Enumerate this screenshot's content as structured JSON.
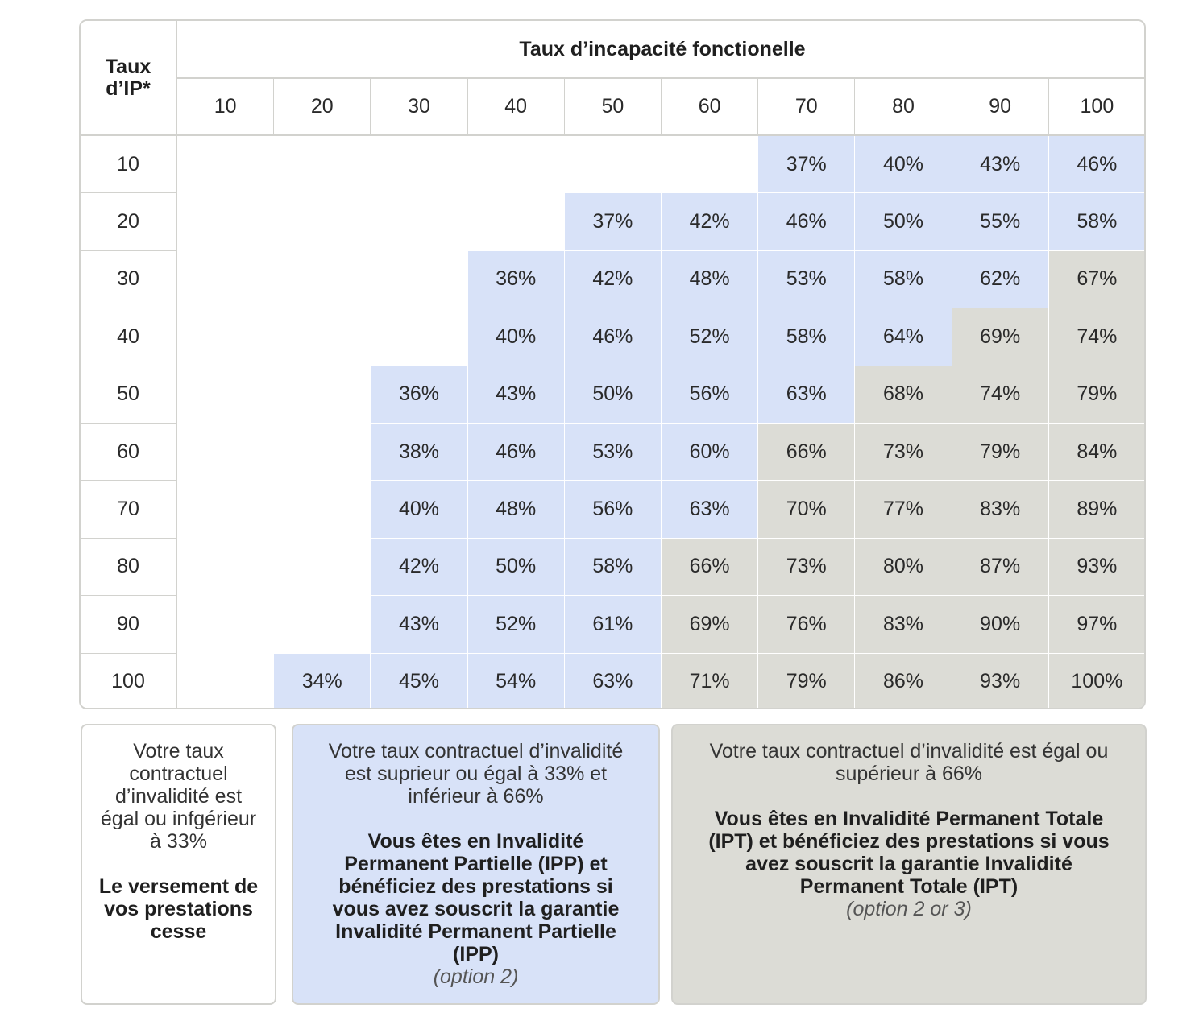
{
  "table": {
    "title": "Taux d’incapacité fonctionelle",
    "row_header_label": "Taux d’IP*",
    "columns": [
      "10",
      "20",
      "30",
      "40",
      "50",
      "60",
      "70",
      "80",
      "90",
      "100"
    ],
    "rows": [
      {
        "label": "10",
        "cells": [
          {
            "v": "",
            "c": "white"
          },
          {
            "v": "",
            "c": "white"
          },
          {
            "v": "",
            "c": "white"
          },
          {
            "v": "",
            "c": "white"
          },
          {
            "v": "",
            "c": "white"
          },
          {
            "v": "",
            "c": "white"
          },
          {
            "v": "37%",
            "c": "blue"
          },
          {
            "v": "40%",
            "c": "blue"
          },
          {
            "v": "43%",
            "c": "blue"
          },
          {
            "v": "46%",
            "c": "blue"
          }
        ]
      },
      {
        "label": "20",
        "cells": [
          {
            "v": "",
            "c": "white"
          },
          {
            "v": "",
            "c": "white"
          },
          {
            "v": "",
            "c": "white"
          },
          {
            "v": "",
            "c": "white"
          },
          {
            "v": "37%",
            "c": "blue"
          },
          {
            "v": "42%",
            "c": "blue"
          },
          {
            "v": "46%",
            "c": "blue"
          },
          {
            "v": "50%",
            "c": "blue"
          },
          {
            "v": "55%",
            "c": "blue"
          },
          {
            "v": "58%",
            "c": "blue"
          }
        ]
      },
      {
        "label": "30",
        "cells": [
          {
            "v": "",
            "c": "white"
          },
          {
            "v": "",
            "c": "white"
          },
          {
            "v": "",
            "c": "white"
          },
          {
            "v": "36%",
            "c": "blue"
          },
          {
            "v": "42%",
            "c": "blue"
          },
          {
            "v": "48%",
            "c": "blue"
          },
          {
            "v": "53%",
            "c": "blue"
          },
          {
            "v": "58%",
            "c": "blue"
          },
          {
            "v": "62%",
            "c": "blue"
          },
          {
            "v": "67%",
            "c": "grey"
          }
        ]
      },
      {
        "label": "40",
        "cells": [
          {
            "v": "",
            "c": "white"
          },
          {
            "v": "",
            "c": "white"
          },
          {
            "v": "",
            "c": "white"
          },
          {
            "v": "40%",
            "c": "blue"
          },
          {
            "v": "46%",
            "c": "blue"
          },
          {
            "v": "52%",
            "c": "blue"
          },
          {
            "v": "58%",
            "c": "blue"
          },
          {
            "v": "64%",
            "c": "blue"
          },
          {
            "v": "69%",
            "c": "grey"
          },
          {
            "v": "74%",
            "c": "grey"
          }
        ]
      },
      {
        "label": "50",
        "cells": [
          {
            "v": "",
            "c": "white"
          },
          {
            "v": "",
            "c": "white"
          },
          {
            "v": "36%",
            "c": "blue"
          },
          {
            "v": "43%",
            "c": "blue"
          },
          {
            "v": "50%",
            "c": "blue"
          },
          {
            "v": "56%",
            "c": "blue"
          },
          {
            "v": "63%",
            "c": "blue"
          },
          {
            "v": "68%",
            "c": "grey"
          },
          {
            "v": "74%",
            "c": "grey"
          },
          {
            "v": "79%",
            "c": "grey"
          }
        ]
      },
      {
        "label": "60",
        "cells": [
          {
            "v": "",
            "c": "white"
          },
          {
            "v": "",
            "c": "white"
          },
          {
            "v": "38%",
            "c": "blue"
          },
          {
            "v": "46%",
            "c": "blue"
          },
          {
            "v": "53%",
            "c": "blue"
          },
          {
            "v": "60%",
            "c": "blue"
          },
          {
            "v": "66%",
            "c": "grey"
          },
          {
            "v": "73%",
            "c": "grey"
          },
          {
            "v": "79%",
            "c": "grey"
          },
          {
            "v": "84%",
            "c": "grey"
          }
        ]
      },
      {
        "label": "70",
        "cells": [
          {
            "v": "",
            "c": "white"
          },
          {
            "v": "",
            "c": "white"
          },
          {
            "v": "40%",
            "c": "blue"
          },
          {
            "v": "48%",
            "c": "blue"
          },
          {
            "v": "56%",
            "c": "blue"
          },
          {
            "v": "63%",
            "c": "blue"
          },
          {
            "v": "70%",
            "c": "grey"
          },
          {
            "v": "77%",
            "c": "grey"
          },
          {
            "v": "83%",
            "c": "grey"
          },
          {
            "v": "89%",
            "c": "grey"
          }
        ]
      },
      {
        "label": "80",
        "cells": [
          {
            "v": "",
            "c": "white"
          },
          {
            "v": "",
            "c": "white"
          },
          {
            "v": "42%",
            "c": "blue"
          },
          {
            "v": "50%",
            "c": "blue"
          },
          {
            "v": "58%",
            "c": "blue"
          },
          {
            "v": "66%",
            "c": "grey"
          },
          {
            "v": "73%",
            "c": "grey"
          },
          {
            "v": "80%",
            "c": "grey"
          },
          {
            "v": "87%",
            "c": "grey"
          },
          {
            "v": "93%",
            "c": "grey"
          }
        ]
      },
      {
        "label": "90",
        "cells": [
          {
            "v": "",
            "c": "white"
          },
          {
            "v": "",
            "c": "white"
          },
          {
            "v": "43%",
            "c": "blue"
          },
          {
            "v": "52%",
            "c": "blue"
          },
          {
            "v": "61%",
            "c": "blue"
          },
          {
            "v": "69%",
            "c": "grey"
          },
          {
            "v": "76%",
            "c": "grey"
          },
          {
            "v": "83%",
            "c": "grey"
          },
          {
            "v": "90%",
            "c": "grey"
          },
          {
            "v": "97%",
            "c": "grey"
          }
        ]
      },
      {
        "label": "100",
        "cells": [
          {
            "v": "",
            "c": "white"
          },
          {
            "v": "34%",
            "c": "blue"
          },
          {
            "v": "45%",
            "c": "blue"
          },
          {
            "v": "54%",
            "c": "blue"
          },
          {
            "v": "63%",
            "c": "blue"
          },
          {
            "v": "71%",
            "c": "grey"
          },
          {
            "v": "79%",
            "c": "grey"
          },
          {
            "v": "86%",
            "c": "grey"
          },
          {
            "v": "93%",
            "c": "grey"
          },
          {
            "v": "100%",
            "c": "grey"
          }
        ]
      }
    ]
  },
  "legend": {
    "white": {
      "text": "Votre taux contractuel d’invalidité est égal ou infgérieur à 33%",
      "bold": "Le versement de vos prestations cesse"
    },
    "blue": {
      "text": "Votre taux contractuel d’invalidité est suprieur ou égal à 33% et inférieur à 66%",
      "bold": "Vous êtes en Invalidité Permanent Partielle (IPP) et bénéficiez des prestations si vous avez souscrit la garantie Invalidité Permanent Partielle (IPP)",
      "italic": "(option 2)"
    },
    "grey": {
      "text": "Votre taux contractuel d’invalidité est égal ou supérieur à 66%",
      "bold": "Vous êtes en Invalidité Permanent Totale (IPT) et bénéficiez des prestations si vous avez souscrit la garantie Invalidité Permanent Totale (IPT)",
      "italic": "(option 2 or 3)"
    }
  },
  "colors": {
    "white": "#ffffff",
    "blue": "#d8e2f8",
    "grey": "#dcdcd6",
    "border": "#d2d2ce"
  }
}
